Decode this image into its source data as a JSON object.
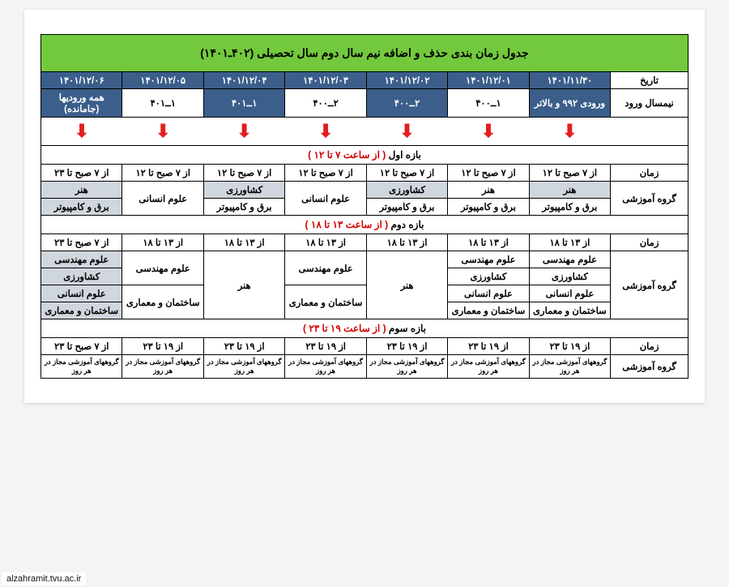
{
  "title": "جدول زمان بندی حذف و اضافه نیم سال دوم سال تحصیلی (۴۰۲ـ۱۴۰۱)",
  "watermark": "alzahramit.tvu.ac.ir",
  "header_labels": {
    "date": "تاریخ",
    "entry": "نیمسال ورود",
    "time": "زمان",
    "group": "گروه آموزشی"
  },
  "dates": [
    "۱۴۰۱/۱۱/۳۰",
    "۱۴۰۱/۱۲/۰۱",
    "۱۴۰۱/۱۲/۰۲",
    "۱۴۰۱/۱۲/۰۳",
    "۱۴۰۱/۱۲/۰۴",
    "۱۴۰۱/۱۲/۰۵",
    "۱۴۰۱/۱۲/۰۶"
  ],
  "entries": [
    "ورودی ۹۹۲ و بالاتر",
    "۱ــ۴۰۰",
    "۲ــ۴۰۰",
    "۲ــ۴۰۰",
    "۱ــ۴۰۱",
    "۱ــ۴۰۱",
    "همه ورودیها (جامانده)"
  ],
  "entry_style": [
    "dark",
    "label",
    "dark",
    "label",
    "dark",
    "label",
    "dark"
  ],
  "sections": [
    {
      "header_black": "بازه اول",
      "header_red": "( از ساعت ۷ تا ۱۲ )",
      "time_cells": [
        "از ۷ صبح تا ۱۲",
        "از ۷ صبح تا ۱۲",
        "از ۷ صبح تا ۱۲",
        "از ۷ صبح تا ۱۲",
        "از ۷ صبح تا ۱۲",
        "از ۷ صبح تا ۱۲",
        "از ۷ صبح تا ۲۳"
      ],
      "group_rows": [
        [
          {
            "text": "هنر",
            "cls": "gray-cell"
          },
          {
            "text": "هنر"
          },
          {
            "text": "کشاورزی",
            "cls": "gray-cell"
          },
          {
            "text": "علوم انسانی",
            "rowspan": 2
          },
          {
            "text": "کشاورزی",
            "cls": "gray-cell"
          },
          {
            "text": "علوم انسانی",
            "rowspan": 2
          },
          {
            "text": "هنر",
            "cls": "gray-cell"
          }
        ],
        [
          {
            "text": "برق و کامپیوتر"
          },
          {
            "text": "برق و کامپیوتر"
          },
          {
            "text": "برق و کامپیوتر"
          },
          {
            "text": "برق و کامپیوتر"
          },
          {
            "text": "برق و کامپیوتر",
            "cls": "gray-cell"
          }
        ]
      ],
      "group_rowspan": 2
    },
    {
      "header_black": "بازه دوم",
      "header_red": "( از ساعت ۱۳ تا ۱۸ )",
      "time_cells": [
        "از ۱۳ تا ۱۸",
        "از ۱۳ تا ۱۸",
        "از ۱۳ تا ۱۸",
        "از ۱۳ تا ۱۸",
        "از ۱۳ تا ۱۸",
        "از ۱۳ تا ۱۸",
        "از ۷ صبح تا ۲۳"
      ],
      "group_rows": [
        [
          {
            "text": "علوم مهندسی"
          },
          {
            "text": "علوم مهندسی"
          },
          {
            "text": "هنر",
            "rowspan": 4
          },
          {
            "text": "علوم مهندسی",
            "rowspan": 2
          },
          {
            "text": "هنر",
            "rowspan": 4
          },
          {
            "text": "علوم مهندسی",
            "rowspan": 2
          },
          {
            "text": "علوم مهندسی",
            "cls": "gray-cell"
          }
        ],
        [
          {
            "text": "کشاورزی"
          },
          {
            "text": "کشاورزی"
          },
          {
            "text": "کشاورزی",
            "cls": "gray-cell"
          }
        ],
        [
          {
            "text": "علوم انسانی"
          },
          {
            "text": "علوم انسانی"
          },
          {
            "text": "ساختمان و معماری",
            "rowspan": 2
          },
          {
            "text": "ساختمان و معماری",
            "rowspan": 2
          },
          {
            "text": "علوم انسانی",
            "cls": "gray-cell"
          }
        ],
        [
          {
            "text": "ساختمان و معماری"
          },
          {
            "text": "ساختمان و معماری"
          },
          {
            "text": "ساختمان و معماری",
            "cls": "gray-cell"
          }
        ]
      ],
      "group_rowspan": 4
    },
    {
      "header_black": "بازه سوم",
      "header_red": "( از ساعت ۱۹ تا ۲۳ )",
      "time_cells": [
        "از ۱۹ تا ۲۳",
        "از ۱۹ تا ۲۳",
        "از ۱۹ تا ۲۳",
        "از ۱۹ تا ۲۳",
        "از ۱۹ تا ۲۳",
        "از ۱۹ تا ۲۳",
        "از ۷ صبح تا ۲۳"
      ],
      "group_rows": [
        [
          {
            "text": "گروههای آموزشی مجاز در هر روز",
            "cls": "small-text"
          },
          {
            "text": "گروههای آموزشی مجاز در هر روز",
            "cls": "small-text"
          },
          {
            "text": "گروههای آموزشی مجاز در هر روز",
            "cls": "small-text"
          },
          {
            "text": "گروههای آموزشی مجاز در هر روز",
            "cls": "small-text"
          },
          {
            "text": "گروههای آموزشی مجاز در هر روز",
            "cls": "small-text"
          },
          {
            "text": "گروههای آموزشی مجاز در هر روز",
            "cls": "small-text"
          },
          {
            "text": "گروههای آموزشی مجاز در هر روز",
            "cls": "small-text"
          }
        ]
      ],
      "group_rowspan": 1
    }
  ]
}
